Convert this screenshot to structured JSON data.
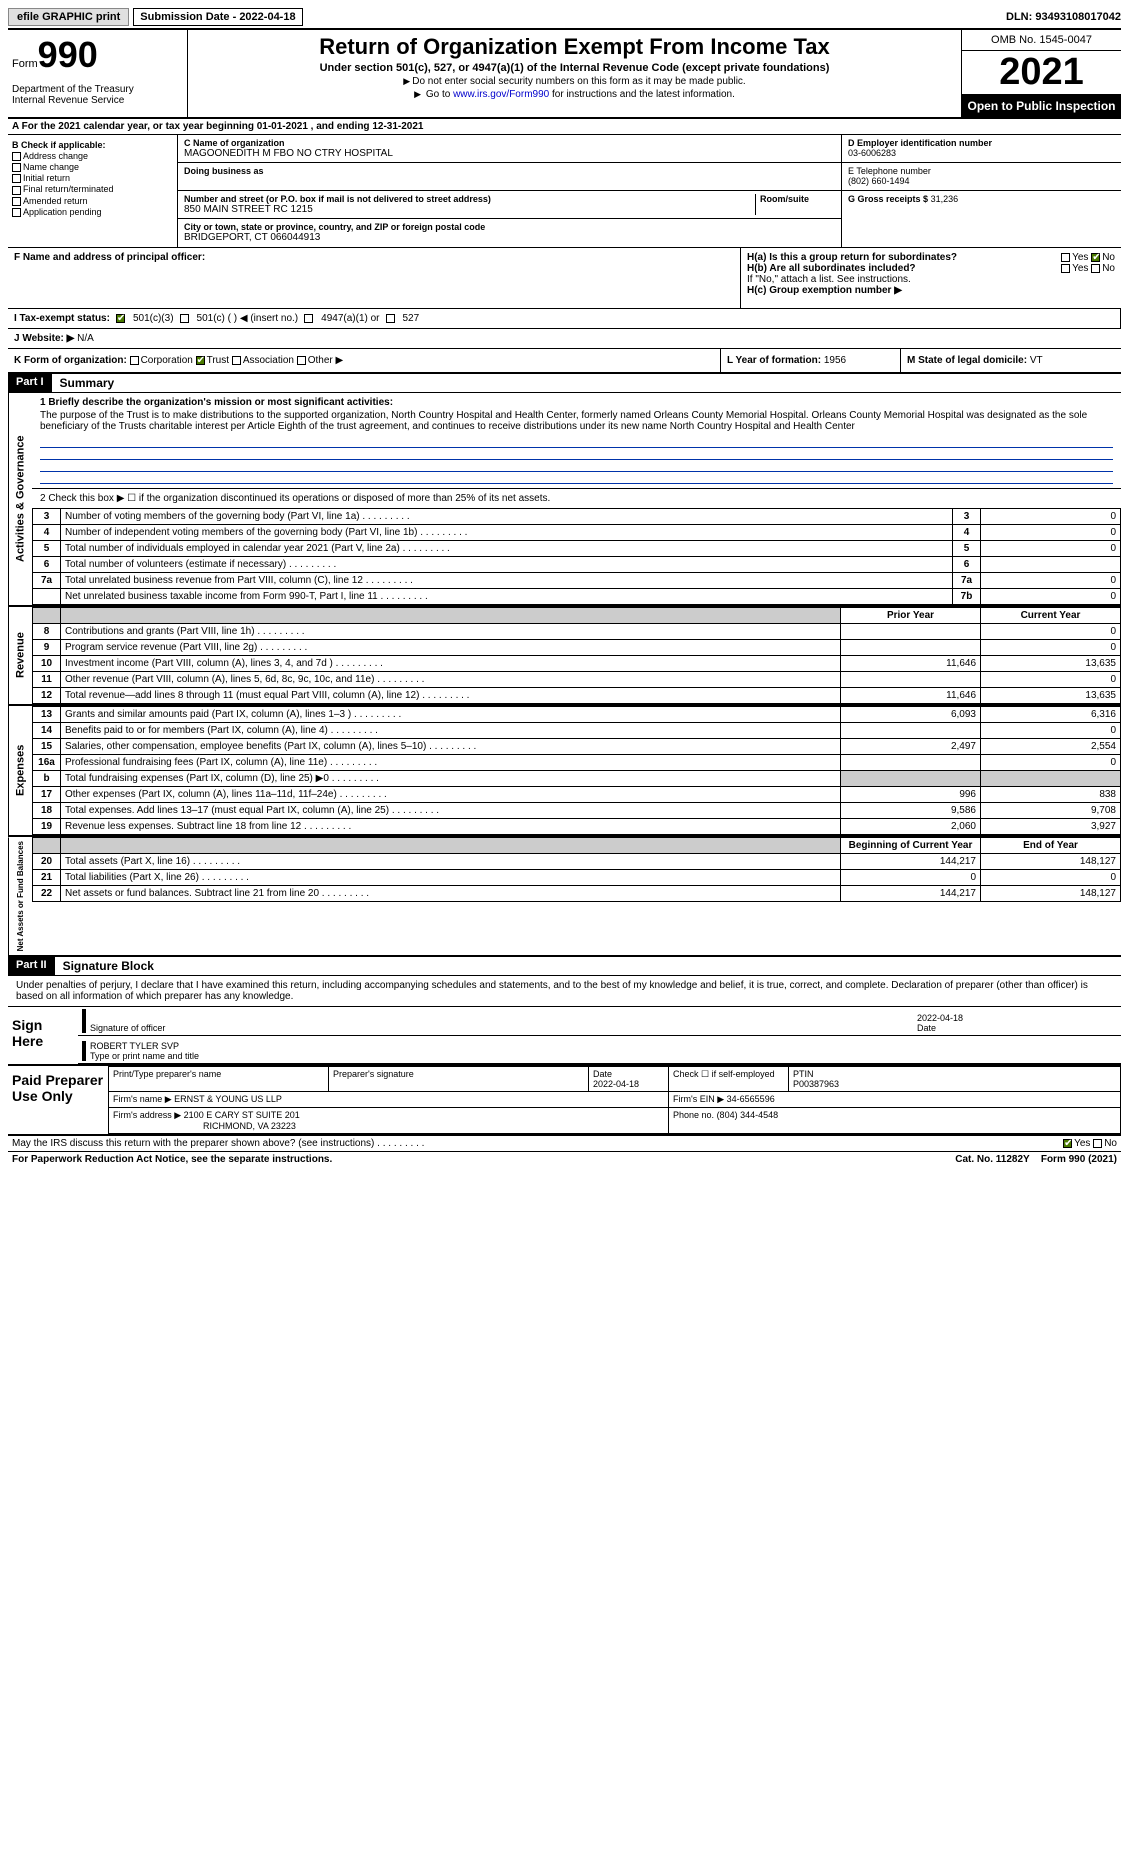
{
  "topbar": {
    "efile": "efile GRAPHIC print",
    "submission_label": "Submission Date - 2022-04-18",
    "dln": "DLN: 93493108017042"
  },
  "header": {
    "form_word": "Form",
    "form_number": "990",
    "dept": "Department of the Treasury\nInternal Revenue Service",
    "title": "Return of Organization Exempt From Income Tax",
    "subtitle": "Under section 501(c), 527, or 4947(a)(1) of the Internal Revenue Code (except private foundations)",
    "note1": "Do not enter social security numbers on this form as it may be made public.",
    "note2_pre": "Go to ",
    "note2_link": "www.irs.gov/Form990",
    "note2_post": " for instructions and the latest information.",
    "omb": "OMB No. 1545-0047",
    "year": "2021",
    "open": "Open to Public Inspection"
  },
  "lineA": "A For the 2021 calendar year, or tax year beginning 01-01-2021    , and ending 12-31-2021",
  "colB": {
    "header": "B Check if applicable:",
    "items": [
      "Address change",
      "Name change",
      "Initial return",
      "Final return/terminated",
      "Amended return",
      "Application pending"
    ]
  },
  "colC": {
    "name_label": "C Name of organization",
    "name": "MAGOONEDITH M FBO NO CTRY HOSPITAL",
    "dba_label": "Doing business as",
    "dba": "",
    "addr_label": "Number and street (or P.O. box if mail is not delivered to street address)",
    "room_label": "Room/suite",
    "addr": "850 MAIN STREET RC 1215",
    "city_label": "City or town, state or province, country, and ZIP or foreign postal code",
    "city": "BRIDGEPORT, CT  066044913"
  },
  "colD": {
    "ein_label": "D Employer identification number",
    "ein": "03-6006283",
    "tel_label": "E Telephone number",
    "tel": "(802) 660-1494",
    "gross_label": "G Gross receipts $",
    "gross": "31,236"
  },
  "rowF": {
    "f_label": "F  Name and address of principal officer:",
    "h_a": "H(a)  Is this a group return for subordinates?",
    "h_b": "H(b)  Are all subordinates included?",
    "h_b_note": "If \"No,\" attach a list. See instructions.",
    "h_c": "H(c)  Group exemption number ▶",
    "yes": "Yes",
    "no": "No"
  },
  "rowI": {
    "label": "I  Tax-exempt status:",
    "opt1": "501(c)(3)",
    "opt2": "501(c) (  ) ◀ (insert no.)",
    "opt3": "4947(a)(1) or",
    "opt4": "527"
  },
  "rowJ": {
    "label": "J  Website: ▶",
    "val": "N/A"
  },
  "rowK": {
    "label": "K Form of organization:",
    "opts": [
      "Corporation",
      "Trust",
      "Association",
      "Other ▶"
    ],
    "checked_idx": 1
  },
  "rowL": {
    "label": "L Year of formation:",
    "val": "1956"
  },
  "rowM": {
    "label": "M State of legal domicile:",
    "val": "VT"
  },
  "partI": {
    "tag": "Part I",
    "title": "Summary",
    "q1_label": "1  Briefly describe the organization's mission or most significant activities:",
    "q1_text": "The purpose of the Trust is to make distributions to the supported organization, North Country Hospital and Health Center, formerly named Orleans County Memorial Hospital. Orleans County Memorial Hospital was designated as the sole beneficiary of the Trusts charitable interest per Article Eighth of the trust agreement, and continues to receive distributions under its new name North Country Hospital and Health Center",
    "q2": "2   Check this box ▶ ☐ if the organization discontinued its operations or disposed of more than 25% of its net assets.",
    "rows_gov": [
      {
        "n": "3",
        "desc": "Number of voting members of the governing body (Part VI, line 1a)",
        "box": "3",
        "val": "0"
      },
      {
        "n": "4",
        "desc": "Number of independent voting members of the governing body (Part VI, line 1b)",
        "box": "4",
        "val": "0"
      },
      {
        "n": "5",
        "desc": "Total number of individuals employed in calendar year 2021 (Part V, line 2a)",
        "box": "5",
        "val": "0"
      },
      {
        "n": "6",
        "desc": "Total number of volunteers (estimate if necessary)",
        "box": "6",
        "val": ""
      },
      {
        "n": "7a",
        "desc": "Total unrelated business revenue from Part VIII, column (C), line 12",
        "box": "7a",
        "val": "0"
      },
      {
        "n": "",
        "desc": "Net unrelated business taxable income from Form 990-T, Part I, line 11",
        "box": "7b",
        "val": "0"
      }
    ],
    "col_prior": "Prior Year",
    "col_current": "Current Year",
    "rows_rev": [
      {
        "n": "8",
        "desc": "Contributions and grants (Part VIII, line 1h)",
        "prior": "",
        "cur": "0"
      },
      {
        "n": "9",
        "desc": "Program service revenue (Part VIII, line 2g)",
        "prior": "",
        "cur": "0"
      },
      {
        "n": "10",
        "desc": "Investment income (Part VIII, column (A), lines 3, 4, and 7d )",
        "prior": "11,646",
        "cur": "13,635"
      },
      {
        "n": "11",
        "desc": "Other revenue (Part VIII, column (A), lines 5, 6d, 8c, 9c, 10c, and 11e)",
        "prior": "",
        "cur": "0"
      },
      {
        "n": "12",
        "desc": "Total revenue—add lines 8 through 11 (must equal Part VIII, column (A), line 12)",
        "prior": "11,646",
        "cur": "13,635"
      }
    ],
    "rows_exp": [
      {
        "n": "13",
        "desc": "Grants and similar amounts paid (Part IX, column (A), lines 1–3 )",
        "prior": "6,093",
        "cur": "6,316"
      },
      {
        "n": "14",
        "desc": "Benefits paid to or for members (Part IX, column (A), line 4)",
        "prior": "",
        "cur": "0"
      },
      {
        "n": "15",
        "desc": "Salaries, other compensation, employee benefits (Part IX, column (A), lines 5–10)",
        "prior": "2,497",
        "cur": "2,554"
      },
      {
        "n": "16a",
        "desc": "Professional fundraising fees (Part IX, column (A), line 11e)",
        "prior": "",
        "cur": "0"
      },
      {
        "n": "b",
        "desc": "Total fundraising expenses (Part IX, column (D), line 25) ▶0",
        "prior": "GREY",
        "cur": "GREY"
      },
      {
        "n": "17",
        "desc": "Other expenses (Part IX, column (A), lines 11a–11d, 11f–24e)",
        "prior": "996",
        "cur": "838"
      },
      {
        "n": "18",
        "desc": "Total expenses. Add lines 13–17 (must equal Part IX, column (A), line 25)",
        "prior": "9,586",
        "cur": "9,708"
      },
      {
        "n": "19",
        "desc": "Revenue less expenses. Subtract line 18 from line 12",
        "prior": "2,060",
        "cur": "3,927"
      }
    ],
    "col_begin": "Beginning of Current Year",
    "col_end": "End of Year",
    "rows_net": [
      {
        "n": "20",
        "desc": "Total assets (Part X, line 16)",
        "prior": "144,217",
        "cur": "148,127"
      },
      {
        "n": "21",
        "desc": "Total liabilities (Part X, line 26)",
        "prior": "0",
        "cur": "0"
      },
      {
        "n": "22",
        "desc": "Net assets or fund balances. Subtract line 21 from line 20",
        "prior": "144,217",
        "cur": "148,127"
      }
    ],
    "vlabels": {
      "gov": "Activities & Governance",
      "rev": "Revenue",
      "exp": "Expenses",
      "net": "Net Assets or Fund Balances"
    }
  },
  "partII": {
    "tag": "Part II",
    "title": "Signature Block",
    "decl": "Under penalties of perjury, I declare that I have examined this return, including accompanying schedules and statements, and to the best of my knowledge and belief, it is true, correct, and complete. Declaration of preparer (other than officer) is based on all information of which preparer has any knowledge.",
    "sign_here": "Sign Here",
    "sig_officer": "Signature of officer",
    "sig_date_label": "Date",
    "sig_date": "2022-04-18",
    "name_title": "ROBERT TYLER  SVP",
    "name_title_label": "Type or print name and title",
    "paid": "Paid Preparer Use Only",
    "prep_name_label": "Print/Type preparer's name",
    "prep_name": "",
    "prep_sig_label": "Preparer's signature",
    "prep_date_label": "Date",
    "prep_date": "2022-04-18",
    "self_emp": "Check ☐ if self-employed",
    "ptin_label": "PTIN",
    "ptin": "P00387963",
    "firm_name_label": "Firm's name    ▶",
    "firm_name": "ERNST & YOUNG US LLP",
    "firm_ein_label": "Firm's EIN ▶",
    "firm_ein": "34-6565596",
    "firm_addr_label": "Firm's address ▶",
    "firm_addr1": "2100 E CARY ST SUITE 201",
    "firm_addr2": "RICHMOND, VA  23223",
    "phone_label": "Phone no.",
    "phone": "(804) 344-4548",
    "may_irs": "May the IRS discuss this return with the preparer shown above? (see instructions)",
    "yes": "Yes",
    "no": "No"
  },
  "footer": {
    "pra": "For Paperwork Reduction Act Notice, see the separate instructions.",
    "cat": "Cat. No. 11282Y",
    "form": "Form 990 (2021)"
  }
}
